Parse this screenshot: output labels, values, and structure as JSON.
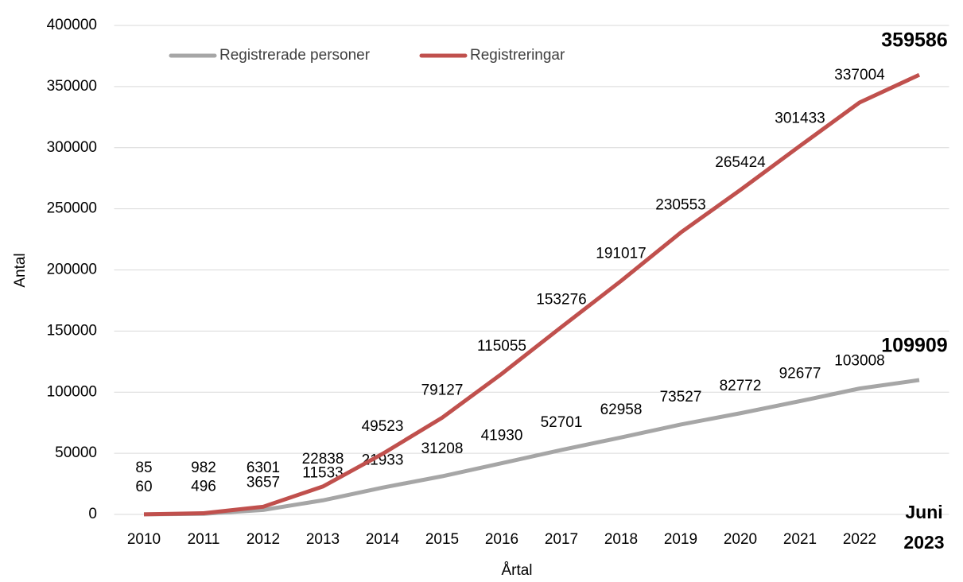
{
  "chart_data": {
    "type": "line",
    "x_label": "Årtal",
    "y_label": "Antal",
    "categories": [
      "2010",
      "2011",
      "2012",
      "2013",
      "2014",
      "2015",
      "2016",
      "2017",
      "2018",
      "2019",
      "2020",
      "2021",
      "2022",
      "Juni 2023"
    ],
    "series": [
      {
        "name": "Registrerade personer",
        "color": "#a6a6a6",
        "values": [
          60,
          496,
          3657,
          11533,
          21933,
          31208,
          41930,
          52701,
          62958,
          73527,
          82772,
          92677,
          103008,
          109909
        ]
      },
      {
        "name": "Registreringar",
        "color": "#c0504d",
        "values": [
          85,
          982,
          6301,
          22838,
          49523,
          79127,
          115055,
          153276,
          191017,
          230553,
          265424,
          301433,
          337004,
          359586
        ]
      }
    ],
    "ylim": [
      0,
      400000
    ],
    "yticks": [
      0,
      50000,
      100000,
      150000,
      200000,
      250000,
      300000,
      350000,
      400000
    ],
    "grid": true,
    "legend": "top-left"
  }
}
